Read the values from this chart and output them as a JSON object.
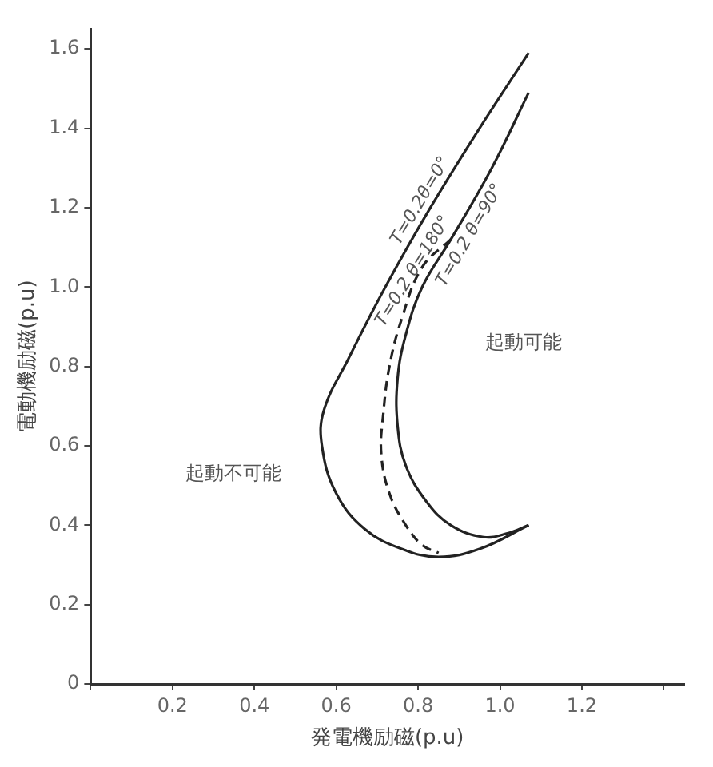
{
  "chart_data": {
    "type": "line",
    "xlabel": "発電機励磁(p.u)",
    "ylabel": "電動機励磁(p.u)",
    "xlim": [
      0,
      1.45
    ],
    "ylim": [
      0,
      1.65
    ],
    "xticks": [
      {
        "value": 0,
        "label": null
      },
      0.2,
      0.4,
      0.6,
      0.8,
      {
        "value": 1,
        "label": "1.0"
      },
      1.2,
      {
        "value": 1.4,
        "label": null
      }
    ],
    "yticks": [
      0,
      0.2,
      0.4,
      0.6,
      0.8,
      {
        "value": 1,
        "label": "1.0"
      },
      1.2,
      1.4,
      1.6
    ],
    "grid": false,
    "legend": false,
    "marker": "none",
    "series": [
      {
        "name": "T=0.2θ=0°",
        "color": "#222222",
        "line_style": "solid",
        "x": [
          1.07,
          0.95,
          0.83,
          0.72,
          0.63,
          0.57,
          0.565,
          0.6,
          0.67,
          0.76,
          0.85,
          0.95,
          1.07
        ],
        "values": [
          1.59,
          1.4,
          1.2,
          1.0,
          0.82,
          0.69,
          0.6,
          0.48,
          0.39,
          0.34,
          0.32,
          0.34,
          0.4
        ]
      },
      {
        "name": "T=0.2 θ=180°",
        "color": "#222222",
        "line_style": "dashed",
        "x": [
          0.88,
          0.81,
          0.76,
          0.73,
          0.715,
          0.71,
          0.73,
          0.77,
          0.81,
          0.85
        ],
        "values": [
          1.12,
          1.05,
          0.92,
          0.8,
          0.68,
          0.58,
          0.48,
          0.4,
          0.35,
          0.33
        ]
      },
      {
        "name": "T=0.2 θ=90°",
        "color": "#222222",
        "line_style": "solid",
        "x": [
          1.07,
          0.98,
          0.88,
          0.81,
          0.77,
          0.75,
          0.75,
          0.77,
          0.82,
          0.88,
          0.96,
          1.02,
          1.07
        ],
        "values": [
          1.49,
          1.3,
          1.12,
          1.0,
          0.88,
          0.77,
          0.65,
          0.55,
          0.46,
          0.4,
          0.37,
          0.38,
          0.4
        ]
      }
    ],
    "annotations": [
      "起動不可能",
      "起動可能"
    ]
  }
}
